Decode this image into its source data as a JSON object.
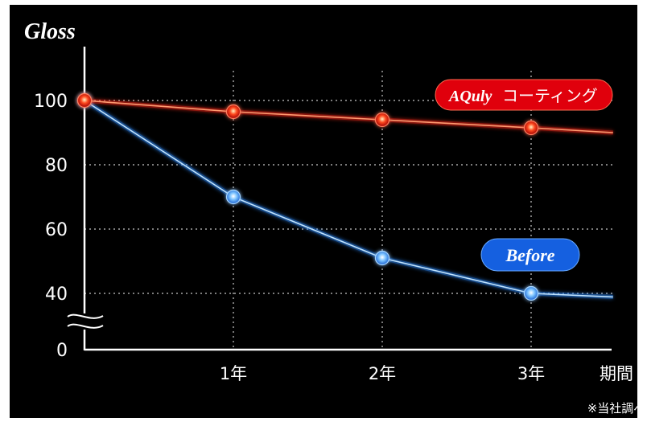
{
  "chart_data": {
    "type": "line",
    "ylabel": "Gloss",
    "categories": [
      "",
      "1年",
      "2年",
      "3年"
    ],
    "xlabel": "期間",
    "yticks": [
      "100",
      "80",
      "60",
      "40",
      "0"
    ],
    "ylim": [
      0,
      100
    ],
    "axis_break": true,
    "grid": true,
    "series": [
      {
        "name": "AQuly コーティング",
        "name_parts": {
          "brand": "AQuly",
          "suffix": "コーティング"
        },
        "color": "#ff2a1a",
        "x": [
          0,
          1,
          2,
          3
        ],
        "values": [
          100,
          96.5,
          94,
          91.5
        ],
        "extends_to": 3.55,
        "end_value": 90
      },
      {
        "name": "Before",
        "color": "#2f8cff",
        "x": [
          0,
          1,
          2,
          3
        ],
        "values": [
          100,
          70,
          51,
          40
        ],
        "extends_to": 3.55,
        "end_value": 37.5
      }
    ],
    "legend_placement": "inline",
    "annotation": "※当社調べ"
  },
  "colors": {
    "background": "#000000",
    "axis": "#ffffff",
    "grid": "#c8c8c8",
    "red_badge": "#e0000c",
    "blue_badge": "#1560e0"
  }
}
